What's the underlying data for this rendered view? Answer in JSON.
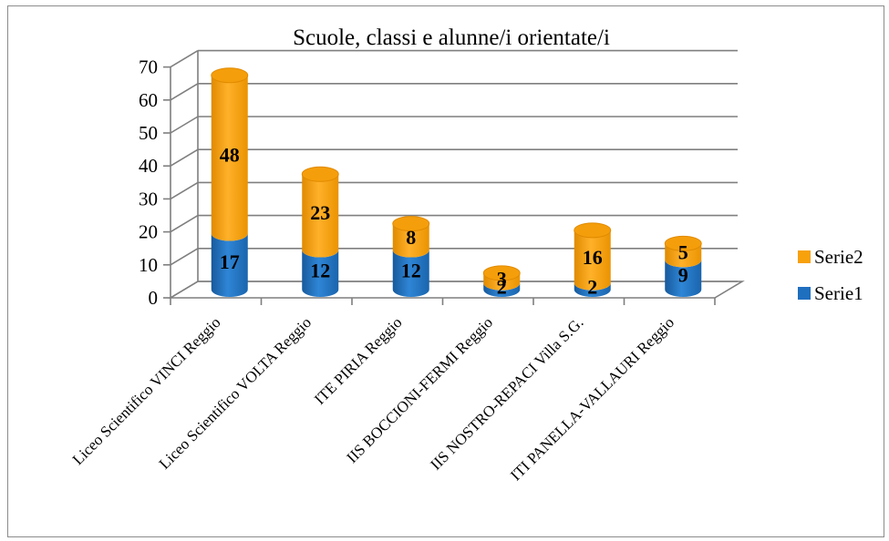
{
  "chart_data": {
    "type": "bar",
    "title": "Scuole, classi e alunne/i orientate/i",
    "xlabel": "",
    "ylabel": "",
    "ylim": [
      0,
      70
    ],
    "yticks": [
      0,
      10,
      20,
      30,
      40,
      50,
      60,
      70
    ],
    "grid": true,
    "legend_position": "right",
    "stacked": true,
    "categories": [
      "Liceo Scientifico VINCI Reggio",
      "Liceo Scientifico VOLTA Reggio",
      "ITE PIRIA Reggio",
      "IIS BOCCIONI-FERMI Reggio",
      "IIS NOSTRO-REPACI Villa S.G.",
      "ITI PANELLA-VALLAURI Reggio"
    ],
    "series": [
      {
        "name": "Serie1",
        "values": [
          17,
          12,
          12,
          2,
          2,
          9
        ],
        "color": "#1f6fbf"
      },
      {
        "name": "Serie2",
        "values": [
          48,
          23,
          8,
          3,
          16,
          5
        ],
        "color": "#f7a10d"
      }
    ]
  }
}
